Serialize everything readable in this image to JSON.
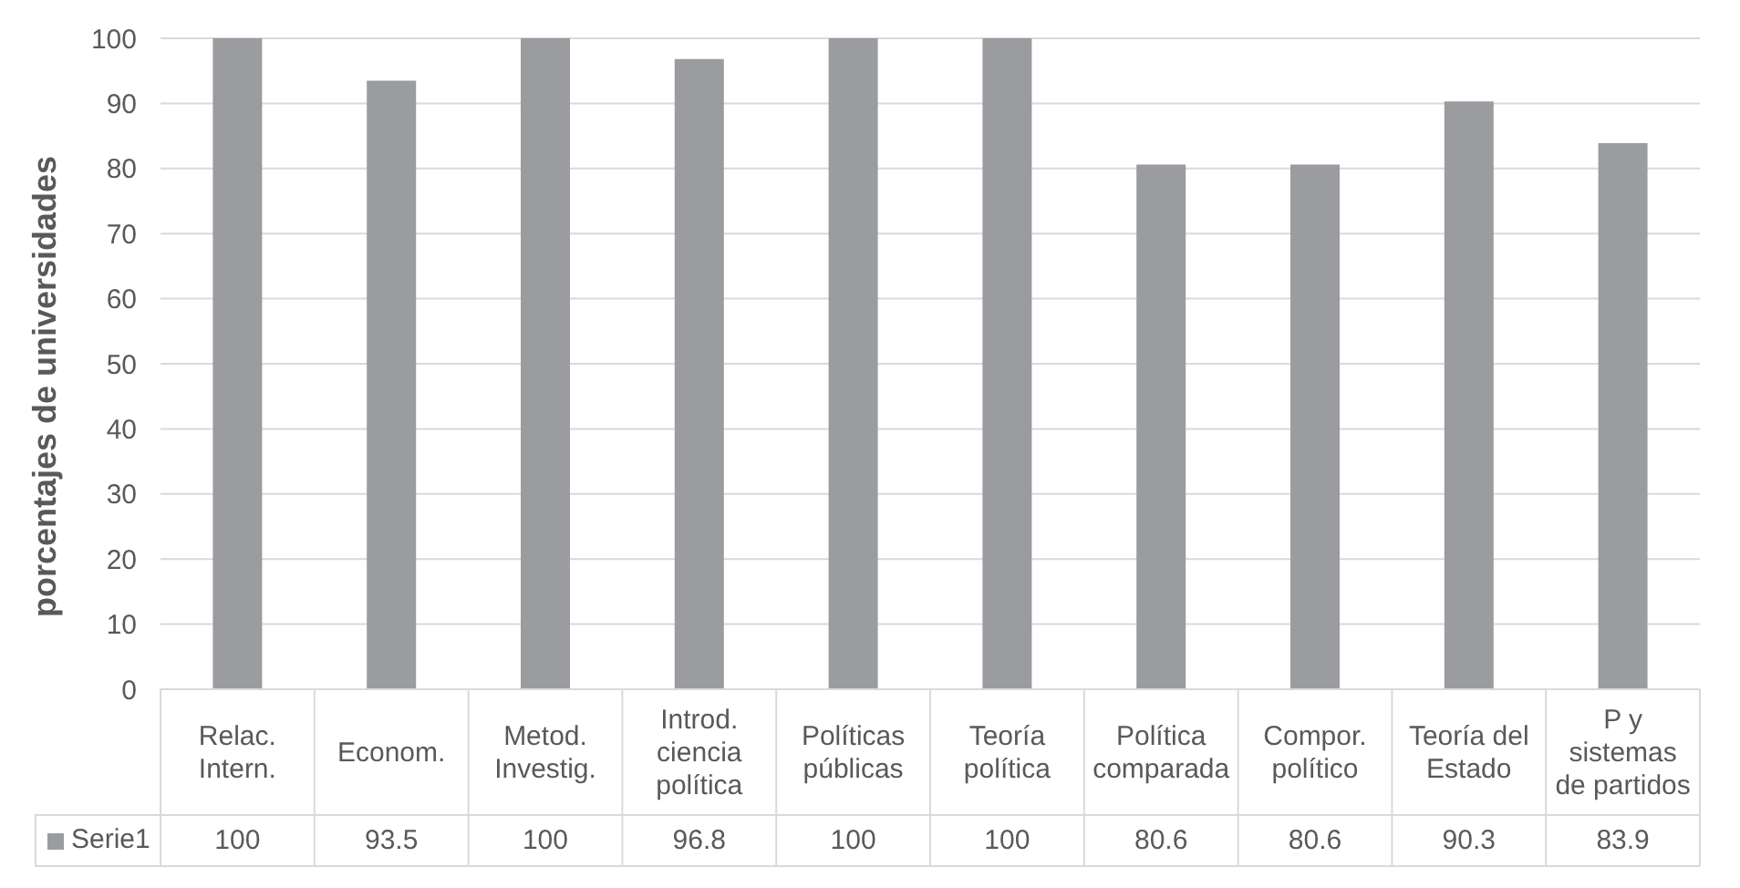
{
  "chart_data": {
    "type": "bar",
    "categories": [
      "Relac. Intern.",
      "Econom.",
      "Metod. Investig.",
      "Introd. ciencia política",
      "Políticas públicas",
      "Teoría política",
      "Política comparada",
      "Compor. político",
      "Teoría del Estado",
      "P y sistemas de partidos"
    ],
    "series": [
      {
        "name": "Serie1",
        "color": "#9b9c9f",
        "values": [
          100,
          93.5,
          100,
          96.8,
          100,
          100,
          80.6,
          80.6,
          90.3,
          83.9
        ]
      }
    ],
    "ylabel": "porcentajes de universidades",
    "ylim": [
      0,
      100
    ],
    "yticks": [
      0,
      10,
      20,
      30,
      40,
      50,
      60,
      70,
      80,
      90,
      100
    ],
    "grid": "y",
    "legend": "bottom left",
    "data_labels": true
  }
}
